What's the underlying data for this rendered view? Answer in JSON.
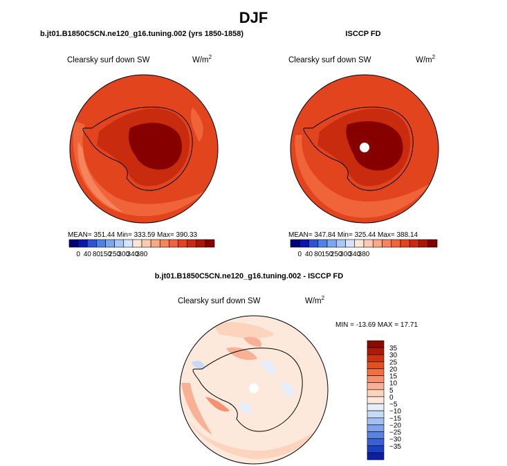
{
  "page": {
    "title": "DJF",
    "left_panel_title": "b.jt01.B1850C5CN.ne120_g16.tuning.002 (yrs 1850-1858)",
    "right_panel_title": "ISCCP FD",
    "diff_panel_title": "b.jt01.B1850C5CN.ne120_g16.tuning.002 - ISCCP FD"
  },
  "chart_data": [
    {
      "type": "heatmap",
      "projection": "south-polar-stereographic",
      "variable_label": "Clearsky surf down SW",
      "units_base": "W/m",
      "units_exp": "2",
      "stats_text": "MEAN= 351.44  Min= 333.59  Max= 390.33",
      "mean": 351.44,
      "min": 333.59,
      "max": 390.33,
      "colorbar": {
        "orientation": "horizontal",
        "tick_labels": [
          "0",
          "40",
          "80",
          "150",
          "250",
          "300",
          "340",
          "380"
        ],
        "colors": [
          "#00007a",
          "#0c16aa",
          "#2b54d4",
          "#4f82e8",
          "#7aa7f0",
          "#a8c6f6",
          "#d6e4fb",
          "#fde6d8",
          "#fccab0",
          "#f9a784",
          "#f6855d",
          "#f0643a",
          "#e2451e",
          "#c92b0e",
          "#ab1703",
          "#870000"
        ]
      }
    },
    {
      "type": "heatmap",
      "projection": "south-polar-stereographic",
      "variable_label": "Clearsky surf down SW",
      "units_base": "W/m",
      "units_exp": "2",
      "stats_text": "MEAN= 347.84  Min= 325.44  Max= 388.14",
      "mean": 347.84,
      "min": 325.44,
      "max": 388.14,
      "colorbar": {
        "orientation": "horizontal",
        "tick_labels": [
          "0",
          "40",
          "80",
          "150",
          "250",
          "300",
          "340",
          "380"
        ],
        "colors": [
          "#00007a",
          "#0c16aa",
          "#2b54d4",
          "#4f82e8",
          "#7aa7f0",
          "#a8c6f6",
          "#d6e4fb",
          "#fde6d8",
          "#fccab0",
          "#f9a784",
          "#f6855d",
          "#f0643a",
          "#e2451e",
          "#c92b0e",
          "#ab1703",
          "#870000"
        ]
      }
    },
    {
      "type": "heatmap",
      "projection": "south-polar-stereographic",
      "variable_label": "Clearsky surf down SW",
      "units_base": "W/m",
      "units_exp": "2",
      "stats_text": "MIN = -13.69  MAX =  17.71",
      "min": -13.69,
      "max": 17.71,
      "colorbar": {
        "orientation": "vertical",
        "tick_labels": [
          "35",
          "30",
          "25",
          "20",
          "15",
          "10",
          "5",
          "0",
          "-5",
          "-10",
          "-15",
          "-20",
          "-25",
          "-30",
          "-35"
        ],
        "colors": [
          "#8b0a00",
          "#ad1b06",
          "#cc3310",
          "#e2501f",
          "#ef7047",
          "#f59170",
          "#f9b195",
          "#fcd3bd",
          "#fde8dc",
          "#e7eefb",
          "#c7d9f6",
          "#a3c0f1",
          "#7fa3ea",
          "#5a82e0",
          "#3862d4",
          "#1a3fc0",
          "#0b1fa0"
        ]
      }
    }
  ]
}
